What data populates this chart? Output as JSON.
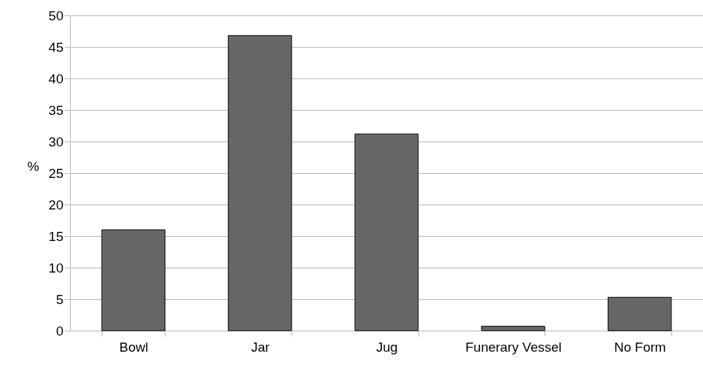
{
  "chart_data": {
    "type": "bar",
    "ylabel": "%",
    "categories": [
      "Bowl",
      "Jar",
      "Jug",
      "Funerary Vessel",
      "No Form"
    ],
    "values": [
      16.0,
      46.8,
      31.2,
      0.7,
      5.3
    ],
    "color": "#666666",
    "ylim": [
      0,
      50
    ],
    "yticks": [
      0,
      5,
      10,
      15,
      20,
      25,
      30,
      35,
      40,
      45,
      50
    ],
    "grid": "y"
  }
}
